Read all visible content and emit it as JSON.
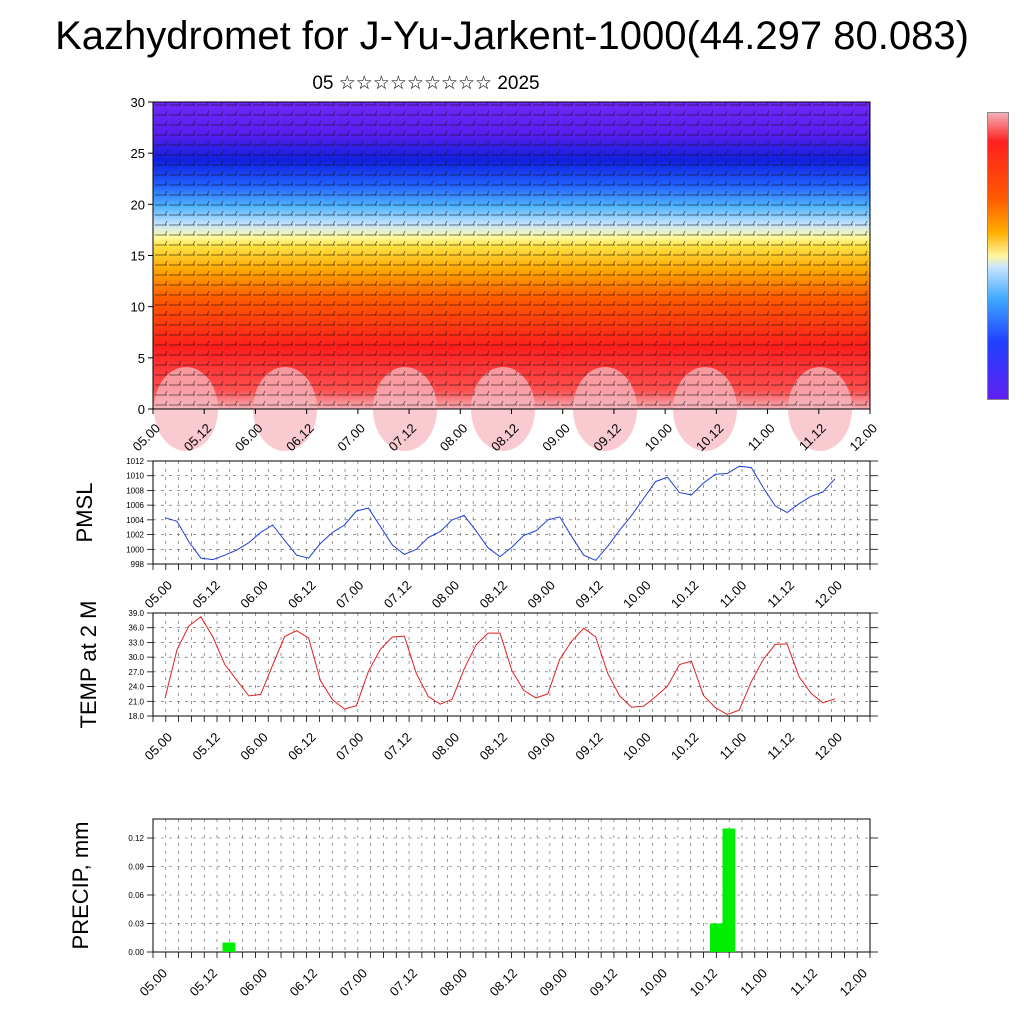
{
  "header": {
    "title": "Kazhydromet for J-Yu-Jarkent-1000(44.297 80.083)",
    "subtitle": "05 ☆☆☆☆☆☆☆☆☆ 2025"
  },
  "time_ticks": [
    "05.00",
    "05.12",
    "06.00",
    "06.12",
    "07.00",
    "07.12",
    "08.00",
    "08.12",
    "09.00",
    "09.12",
    "10.00",
    "10.12",
    "11.00",
    "11.12",
    "12.00"
  ],
  "colors": {
    "pmsl_line": "#1f3fd6",
    "temp_line": "#e02020",
    "precip_bar": "#00ee00",
    "grid": "#444444"
  },
  "chart_data": [
    {
      "type": "heatmap",
      "title": "",
      "xlabel": "",
      "ylabel": "",
      "x_categories": [
        "05.00",
        "05.12",
        "06.00",
        "06.12",
        "07.00",
        "07.12",
        "08.00",
        "08.12",
        "09.00",
        "09.12",
        "10.00",
        "10.12",
        "11.00",
        "11.12",
        "12.00"
      ],
      "y_ticks": [
        0,
        5,
        10,
        15,
        20,
        25,
        30
      ],
      "ylim": [
        0,
        30
      ],
      "colormap": [
        "#f0a0a8",
        "#ff2020",
        "#ff4500",
        "#ff8c00",
        "#ffd700",
        "#ffff80",
        "#b0d8ff",
        "#40a0ff",
        "#1040ff",
        "#6020ff"
      ],
      "overlay": "wind barbs"
    },
    {
      "type": "line",
      "ylabel": "PMSL",
      "ylim": [
        998,
        1012
      ],
      "y_ticks": [
        998,
        1000,
        1002,
        1004,
        1006,
        1008,
        1010,
        1012
      ],
      "x_start": 0,
      "x_step_hours": 3,
      "series": [
        {
          "values": [
            1004.3,
            1003.8,
            1001.0,
            998.8,
            998.6,
            999.2,
            999.9,
            1000.9,
            1002.3,
            1003.3,
            1001.2,
            999.2,
            998.8,
            1000.8,
            1002.3,
            1003.3,
            1005.2,
            1005.6,
            1003.1,
            1000.6,
            999.3,
            1000.0,
            1001.6,
            1002.4,
            1004.0,
            1004.6,
            1002.5,
            1000.2,
            999.0,
            1000.3,
            1001.9,
            1002.5,
            1004.0,
            1004.4,
            1001.7,
            999.2,
            998.5,
            1000.4,
            1002.6,
            1004.6,
            1006.9,
            1009.2,
            1009.8,
            1007.7,
            1007.4,
            1009.0,
            1010.2,
            1010.3,
            1011.3,
            1011.1,
            1008.4,
            1005.9,
            1005.0,
            1006.2,
            1007.2,
            1007.8,
            1009.6
          ]
        }
      ]
    },
    {
      "type": "line",
      "ylabel": "TEMP at 2 M",
      "ylim": [
        18,
        39
      ],
      "y_ticks": [
        18.0,
        21.0,
        24.0,
        27.0,
        30.0,
        33.0,
        36.0,
        39.0
      ],
      "x_start": 0,
      "x_step_hours": 3,
      "series": [
        {
          "values": [
            21.6,
            31.5,
            36.4,
            38.2,
            34.1,
            28.5,
            25.3,
            22.1,
            22.4,
            28.4,
            34.2,
            35.4,
            33.9,
            25.2,
            21.3,
            19.4,
            20.1,
            27.1,
            31.6,
            34.1,
            34.3,
            26.7,
            22.0,
            20.4,
            21.4,
            27.6,
            32.5,
            34.9,
            34.9,
            27.2,
            23.2,
            21.7,
            22.5,
            29.6,
            33.3,
            35.9,
            34.1,
            26.7,
            22.1,
            19.8,
            20.0,
            21.9,
            24.1,
            28.5,
            29.2,
            22.2,
            19.7,
            18.3,
            19.2,
            25.0,
            29.5,
            32.6,
            32.7,
            26.0,
            22.6,
            20.7,
            21.5
          ]
        }
      ]
    },
    {
      "type": "bar",
      "ylabel": "PRECIP, mm",
      "ylim": [
        0,
        0.14
      ],
      "y_ticks": [
        "0.00",
        "0.03",
        "0.06",
        "0.09",
        "0.12"
      ],
      "bars": [
        {
          "x_hours": 15,
          "value": 0.01
        },
        {
          "x_hours": 132,
          "value": 0.03
        },
        {
          "x_hours": 135,
          "value": 0.13
        }
      ]
    }
  ]
}
